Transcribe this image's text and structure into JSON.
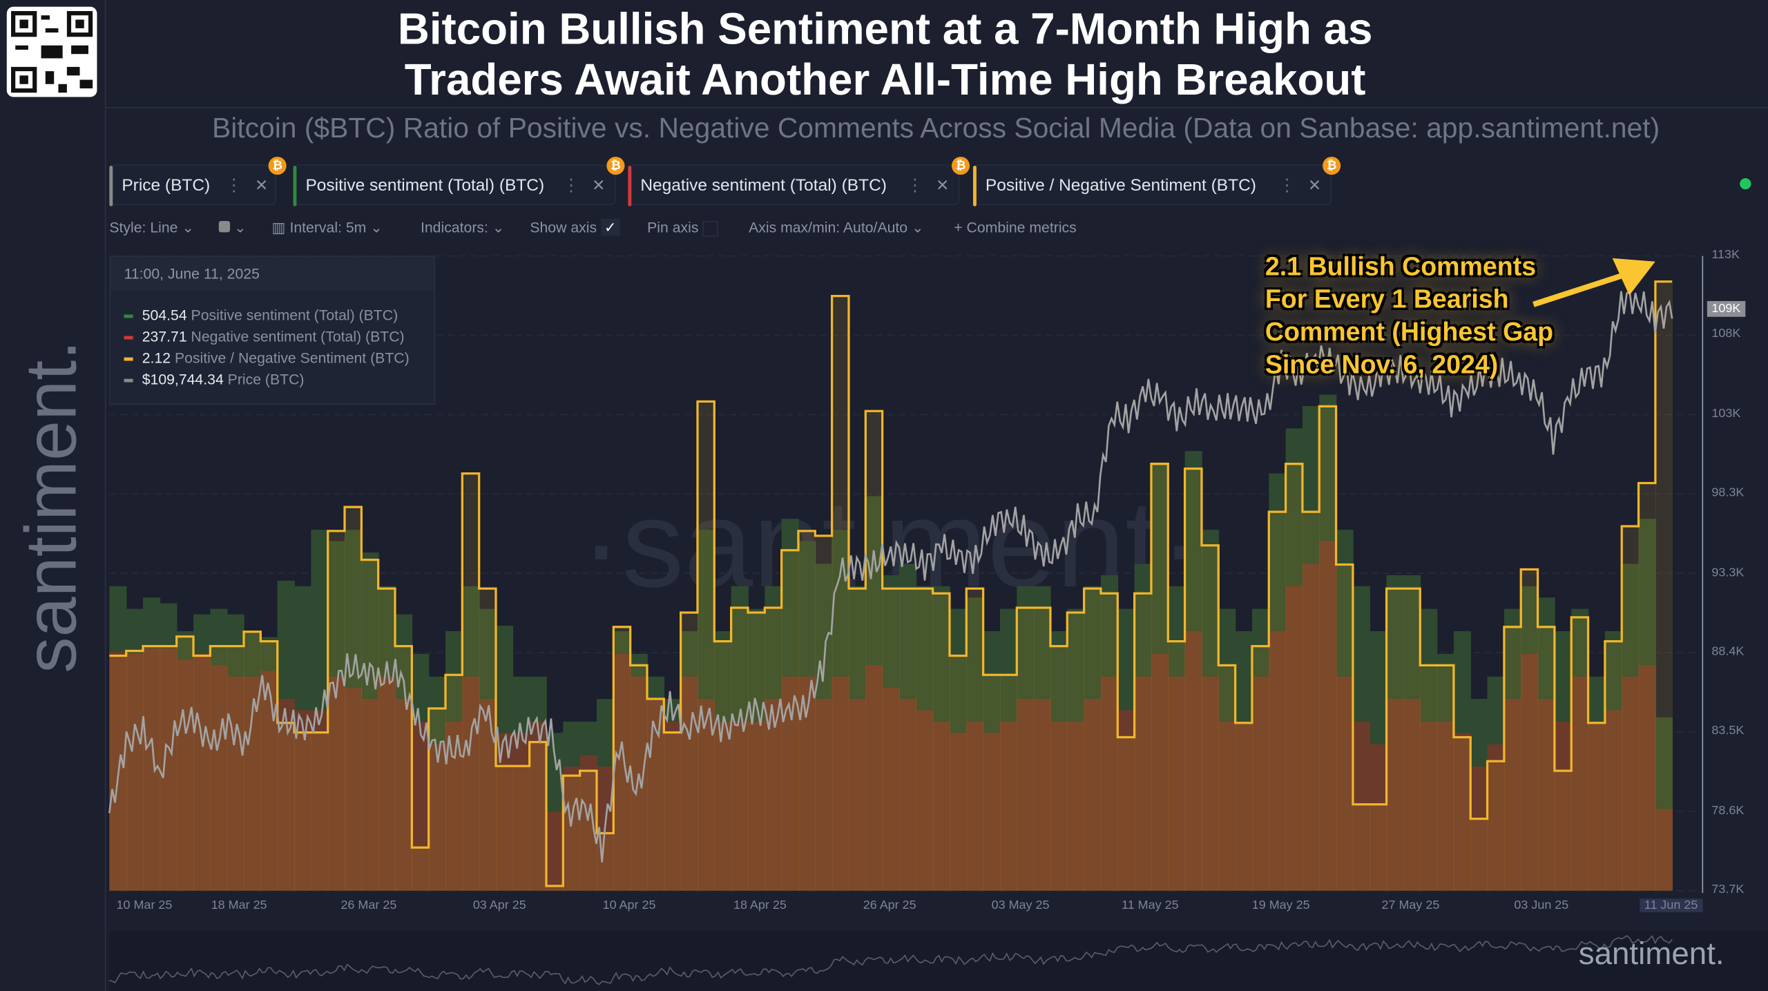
{
  "header": {
    "title_line1": "Bitcoin Bullish Sentiment at a 7-Month High as",
    "title_line2": "Traders Await Another All-Time High Breakout",
    "subtitle": "Bitcoin ($BTC) Ratio of Positive vs. Negative Comments Across Social Media (Data on Sanbase: app.santiment.net)",
    "side_logo": "santiment.",
    "bottom_logo": "santiment."
  },
  "tabs": [
    {
      "label": "Price (BTC)",
      "color": "#8a8a8a"
    },
    {
      "label": "Positive sentiment (Total) (BTC)",
      "color": "#2e8b3e"
    },
    {
      "label": "Negative sentiment (Total) (BTC)",
      "color": "#d23a3a"
    },
    {
      "label": "Positive / Negative Sentiment (BTC)",
      "color": "#f2b52a"
    }
  ],
  "toolbar": {
    "style": "Style: Line",
    "interval": "Interval: 5m",
    "indicators": "Indicators:",
    "show_axis": "Show axis",
    "show_axis_checked": true,
    "pin_axis": "Pin axis",
    "pin_axis_checked": false,
    "axis_maxmin": "Axis max/min: Auto/Auto",
    "combine": "Combine metrics"
  },
  "tooltip": {
    "date": "11:00, June 11, 2025",
    "rows": [
      {
        "value": "504.54",
        "label": "Positive sentiment (Total) (BTC)",
        "color": "#2e8b3e"
      },
      {
        "value": "237.71",
        "label": "Negative sentiment (Total) (BTC)",
        "color": "#d23a3a"
      },
      {
        "value": "2.12",
        "label": "Positive / Negative Sentiment (BTC)",
        "color": "#f2b52a"
      },
      {
        "value": "$109,744.34",
        "label": "Price (BTC)",
        "color": "#8a8a8a"
      }
    ]
  },
  "annotation": [
    "2.1 Bullish Comments",
    "For Every 1 Bearish",
    "Comment (Highest Gap",
    "Since Nov. 6, 2024)"
  ],
  "chart_data": {
    "type": "line",
    "x_range": [
      "2025-03-10",
      "2025-06-11"
    ],
    "x_tick_labels": [
      "10 Mar 25",
      "18 Mar 25",
      "26 Mar 25",
      "03 Apr 25",
      "10 Apr 25",
      "18 Apr 25",
      "26 Apr 25",
      "03 May 25",
      "11 May 25",
      "19 May 25",
      "27 May 25",
      "03 Jun 25",
      "11 Jun 25"
    ],
    "y_tick_labels": [
      "113K",
      "108K",
      "103K",
      "98.3K",
      "93.3K",
      "88.4K",
      "83.5K",
      "78.6K",
      "73.7K"
    ],
    "price_current_label": "109K",
    "price_ylim": [
      73.7,
      113
    ],
    "grid": true,
    "watermark": "·santiment·",
    "series": [
      {
        "name": "Positive sentiment (Total) (BTC)",
        "style": "area-step",
        "color": "#2f4a30",
        "values": [
          886,
          820,
          853,
          836,
          755,
          804,
          820,
          804,
          755,
          738,
          902,
          886,
          1050,
          1017,
          1050,
          984,
          886,
          804,
          689,
          623,
          755,
          886,
          820,
          771,
          623,
          623,
          459,
          492,
          492,
          558,
          755,
          689,
          623,
          558,
          755,
          1050,
          755,
          886,
          820,
          886,
          1082,
          1017,
          951,
          1050,
          886,
          1148,
          918,
          951,
          886,
          886,
          820,
          853,
          755,
          820,
          886,
          886,
          755,
          820,
          886,
          918,
          820,
          951,
          1246,
          886,
          1279,
          1050,
          820,
          755,
          820,
          1214,
          1345,
          1410,
          1443,
          1050,
          886,
          755,
          918,
          918,
          820,
          689,
          755,
          558,
          623,
          820,
          886,
          853,
          755,
          820,
          623,
          755,
          951,
          1082,
          504.54
        ]
      },
      {
        "name": "Negative sentiment (Total) (BTC)",
        "style": "area-step",
        "color": "#6b3a2b",
        "values": [
          695,
          689,
          705,
          705,
          672,
          689,
          656,
          623,
          623,
          640,
          558,
          525,
          525,
          623,
          590,
          558,
          623,
          558,
          492,
          426,
          492,
          623,
          558,
          459,
          459,
          492,
          230,
          361,
          394,
          361,
          689,
          623,
          558,
          492,
          623,
          558,
          492,
          492,
          492,
          558,
          623,
          623,
          558,
          623,
          558,
          656,
          590,
          558,
          525,
          492,
          459,
          492,
          459,
          492,
          558,
          558,
          492,
          492,
          558,
          623,
          525,
          623,
          689,
          623,
          755,
          623,
          492,
          492,
          623,
          755,
          886,
          951,
          1017,
          623,
          492,
          426,
          558,
          558,
          492,
          492,
          459,
          361,
          426,
          558,
          689,
          558,
          492,
          623,
          492,
          525,
          623,
          656,
          237.71
        ]
      },
      {
        "name": "Positive / Negative Sentiment (BTC)",
        "style": "step",
        "color": "#f2b52a",
        "values": [
          1.34,
          1.35,
          1.36,
          1.36,
          1.38,
          1.34,
          1.36,
          1.36,
          1.39,
          1.37,
          1.2,
          1.18,
          1.18,
          1.6,
          1.65,
          1.54,
          1.48,
          1.36,
          0.94,
          1.23,
          1.3,
          1.72,
          1.48,
          1.11,
          1.11,
          1.16,
          0.86,
          1.09,
          1.1,
          0.97,
          1.4,
          1.32,
          1.25,
          1.18,
          1.43,
          1.87,
          1.37,
          1.44,
          1.43,
          1.44,
          1.56,
          1.6,
          1.59,
          2.09,
          1.48,
          1.85,
          1.48,
          1.48,
          1.48,
          1.47,
          1.34,
          1.48,
          1.3,
          1.3,
          1.44,
          1.44,
          1.36,
          1.43,
          1.48,
          1.47,
          1.17,
          1.47,
          1.74,
          1.37,
          1.73,
          1.57,
          1.32,
          1.2,
          1.36,
          1.64,
          1.74,
          1.64,
          1.86,
          1.53,
          1.03,
          1.03,
          1.48,
          1.48,
          1.32,
          1.32,
          1.17,
          1.0,
          1.12,
          1.4,
          1.52,
          1.4,
          1.1,
          1.42,
          1.2,
          1.37,
          1.61,
          1.7,
          2.12
        ]
      },
      {
        "name": "Price (BTC)",
        "style": "line",
        "color": "#9a9a9a",
        "unit": "K USD",
        "values": [
          78.5,
          82.8,
          83.7,
          81,
          84,
          84.3,
          82.6,
          84,
          82.7,
          86.8,
          84.2,
          84,
          83.8,
          86,
          87.5,
          87.4,
          86.9,
          87.2,
          84.4,
          82.6,
          82.4,
          82.5,
          85.2,
          82.5,
          83.1,
          83.8,
          83.5,
          78.4,
          79.2,
          76.3,
          82.6,
          79.6,
          83.4,
          85.3,
          83.7,
          84.5,
          83.7,
          84,
          84.9,
          84.4,
          85.1,
          85.1,
          87.5,
          93.4,
          93.7,
          93.9,
          94.7,
          94.6,
          93.8,
          95,
          94.3,
          94.2,
          96.5,
          96.9,
          95.9,
          94.3,
          94.7,
          96.8,
          97,
          103.2,
          102.9,
          104.6,
          104.1,
          102.8,
          104.1,
          103.5,
          103.7,
          103.5,
          103.2,
          106.4,
          105.6,
          106.8,
          106.5,
          105.2,
          104.6,
          105.8,
          106,
          105.4,
          105.2,
          103.9,
          104.6,
          105.7,
          105.8,
          105.4,
          104.7,
          101.6,
          104.3,
          105.6,
          105.8,
          110.3,
          110.3,
          109.1,
          109.7
        ]
      }
    ]
  }
}
